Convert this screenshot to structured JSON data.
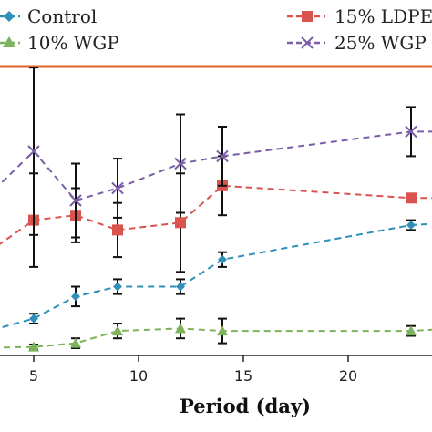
{
  "chart_data": {
    "type": "line",
    "title": "",
    "xlabel": "Period (day)",
    "ylabel": "",
    "xlim": [
      2.5,
      26
    ],
    "ylim": [
      0,
      100
    ],
    "x_ticks": [
      5,
      10,
      15,
      20
    ],
    "grid": false,
    "legend": "top",
    "series": [
      {
        "name": "Control",
        "color": "#2f8fb8",
        "marker": "diamond",
        "x": [
          2,
          5,
          7,
          9,
          12,
          14,
          23,
          25
        ],
        "y": [
          5,
          12,
          21,
          25,
          25,
          36,
          50,
          51
        ],
        "err": [
          0,
          2,
          4,
          3,
          3,
          3,
          2,
          2
        ]
      },
      {
        "name": "10% WGP",
        "color": "#7cb35a",
        "marker": "triangle",
        "x": [
          2,
          5,
          7,
          9,
          12,
          14,
          23,
          25
        ],
        "y": [
          0,
          0.5,
          2,
          7,
          8,
          7,
          7,
          8
        ],
        "err": [
          0,
          1,
          2,
          3,
          4,
          5,
          2,
          2
        ]
      },
      {
        "name": "15% LDPE",
        "color": "#d9534f",
        "marker": "square",
        "x": [
          2,
          5,
          7,
          9,
          12,
          14,
          23,
          25
        ],
        "y": [
          34,
          52,
          54,
          48,
          51,
          66,
          61,
          61
        ],
        "err": [
          0,
          19,
          11,
          11,
          20,
          12,
          0,
          0
        ]
      },
      {
        "name": "25% WGP",
        "color": "#7b5ea7",
        "marker": "x",
        "x": [
          2,
          5,
          7,
          9,
          12,
          14,
          23,
          25
        ],
        "y": [
          55,
          80,
          60,
          65,
          75,
          78,
          88,
          88
        ],
        "err": [
          0,
          34,
          15,
          12,
          20,
          12,
          10,
          0
        ]
      }
    ]
  }
}
